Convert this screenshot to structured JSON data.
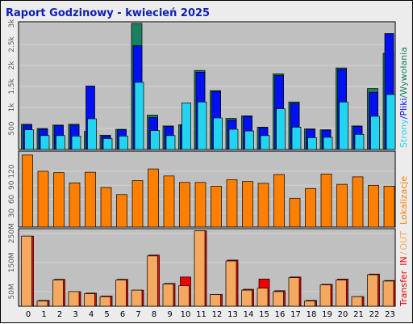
{
  "colors": {
    "frame_bg": "#ececec",
    "panel_bg": "#c0c0c0",
    "gridline": "#d2d2d2",
    "title": "#1020b0",
    "wywolania": "#1a8060",
    "pliki": "#0010f0",
    "strony": "#22d4f0",
    "lokalizacje": "#ff7f00",
    "transfer_in": "#f00000",
    "transfer_out": "#f4a860"
  },
  "chart_data": {
    "type": "bar",
    "title": "Raport Godzinowy -  kwiecień 2025",
    "categories": [
      "0",
      "1",
      "2",
      "3",
      "4",
      "5",
      "6",
      "7",
      "8",
      "9",
      "10",
      "11",
      "12",
      "13",
      "14",
      "15",
      "16",
      "17",
      "18",
      "19",
      "20",
      "21",
      "22",
      "23"
    ],
    "legend_right": {
      "top": [
        "Strony",
        "/",
        "Pliki",
        "/",
        "Wywołania"
      ],
      "middle": "Lokalizacje",
      "bottom": [
        "Transfer",
        "IN",
        "/",
        "OUT"
      ]
    },
    "panels": [
      {
        "name": "requests",
        "ylim": [
          0,
          3000
        ],
        "ticks": [
          {
            "label": "500",
            "value": 500
          },
          {
            "label": "1k",
            "value": 1000
          },
          {
            "label": "1.5k",
            "value": 1500
          },
          {
            "label": "2k",
            "value": 2000
          },
          {
            "label": "2.5k",
            "value": 2500
          },
          {
            "label": "3k",
            "value": 3000
          }
        ],
        "series": [
          {
            "name": "Wywołania",
            "values": [
              600,
              500,
              580,
              600,
              430,
              340,
              480,
              3000,
              820,
              560,
              590,
              1880,
              1400,
              740,
              800,
              530,
              1800,
              1130,
              490,
              470,
              1940,
              560,
              1450,
              2290
            ]
          },
          {
            "name": "Pliki",
            "values": [
              580,
              480,
              570,
              580,
              1510,
              320,
              470,
              2470,
              760,
              550,
              580,
              1840,
              1380,
              700,
              790,
              520,
              1760,
              1100,
              480,
              460,
              1910,
              550,
              1360,
              2760
            ]
          },
          {
            "name": "Strony",
            "values": [
              470,
              330,
              330,
              320,
              730,
              260,
              320,
              1600,
              450,
              330,
              1110,
              1130,
              750,
              480,
              440,
              330,
              970,
              530,
              280,
              290,
              1130,
              360,
              790,
              1310
            ]
          }
        ]
      },
      {
        "name": "lokalizacje",
        "ylim": [
          0,
          160
        ],
        "ticks": [
          {
            "label": "30",
            "value": 30
          },
          {
            "label": "60",
            "value": 60
          },
          {
            "label": "90",
            "value": 90
          },
          {
            "label": "120",
            "value": 120
          }
        ],
        "series": [
          {
            "name": "Lokalizacje",
            "values": [
              155,
              120,
              117,
              95,
              118,
              85,
              70,
              100,
              125,
              110,
              96,
              96,
              88,
              102,
              98,
              94,
              113,
              62,
              83,
              114,
              92,
              108,
              90,
              88
            ]
          }
        ]
      },
      {
        "name": "transfer",
        "ylim": [
          0,
          260
        ],
        "ticks": [
          {
            "label": "50M",
            "value": 50
          },
          {
            "label": "150M",
            "value": 150
          },
          {
            "label": "250M",
            "value": 250
          }
        ],
        "series": [
          {
            "name": "IN",
            "values": [
              240,
              20,
              92,
              50,
              45,
              35,
              92,
              55,
              175,
              78,
              100,
              258,
              40,
              158,
              58,
              93,
              53,
              100,
              20,
              75,
              93,
              33,
              110,
              88
            ]
          },
          {
            "name": "OUT",
            "values": [
              240,
              18,
              90,
              50,
              43,
              33,
              90,
              55,
              172,
              76,
              70,
              258,
              40,
              155,
              55,
              62,
              50,
              98,
              18,
              73,
              90,
              33,
              108,
              86
            ]
          }
        ]
      }
    ]
  }
}
